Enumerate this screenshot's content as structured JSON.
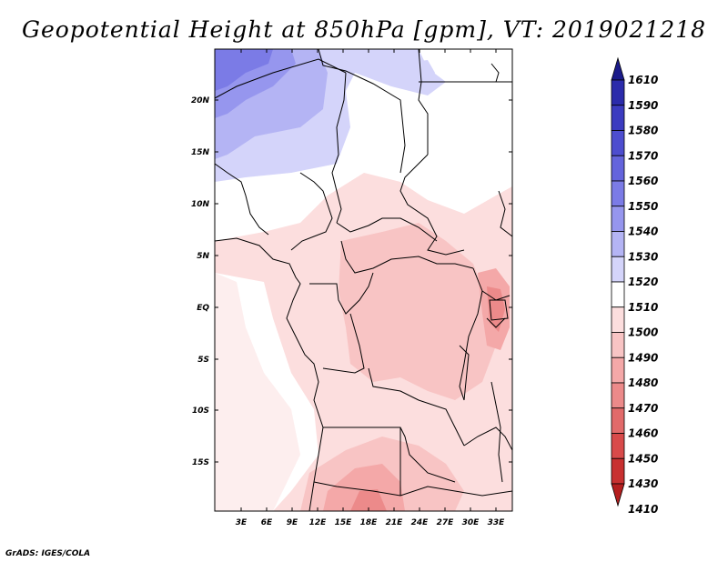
{
  "title": "Geopotential Height at 850hPa [gpm], VT: 2019021218",
  "credit": "GrADS: IGES/COLA",
  "map": {
    "lat_labels": [
      "20N",
      "15N",
      "10N",
      "5N",
      "EQ",
      "5S",
      "10S",
      "15S"
    ],
    "lon_labels": [
      "3E",
      "6E",
      "9E",
      "12E",
      "15E",
      "18E",
      "21E",
      "24E",
      "27E",
      "30E",
      "33E"
    ]
  },
  "colorbar": {
    "levels": [
      "1610",
      "1590",
      "1580",
      "1570",
      "1560",
      "1550",
      "1540",
      "1530",
      "1520",
      "1510",
      "1500",
      "1490",
      "1480",
      "1470",
      "1460",
      "1450",
      "1430",
      "1410"
    ],
    "colors": [
      "#1b1b8a",
      "#2b2bab",
      "#3b3bc0",
      "#4d4dcf",
      "#6464dc",
      "#7b7be6",
      "#9696ee",
      "#b4b4f4",
      "#d4d4fa",
      "#ffffff",
      "#fcdede",
      "#f8c4c4",
      "#f4a8a8",
      "#ec8a8a",
      "#e26a6a",
      "#d84a4a",
      "#c83030",
      "#b41e1e"
    ]
  }
}
